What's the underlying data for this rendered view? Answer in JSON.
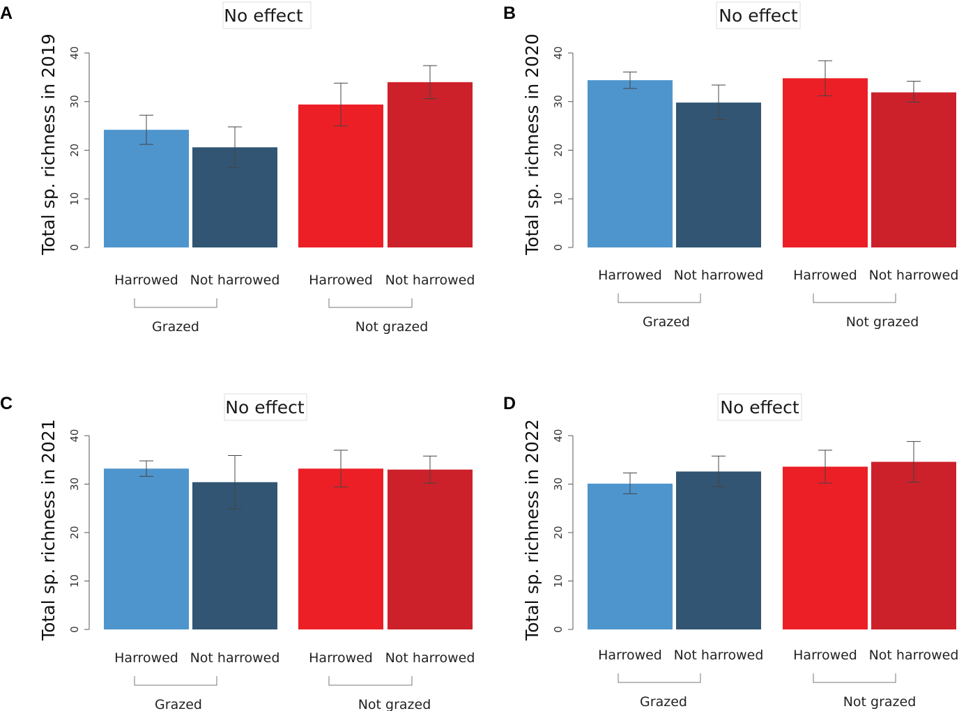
{
  "colors": {
    "grazed_harrowed": "#4f95cd",
    "grazed_not_harrowed": "#315572",
    "notgrazed_harrowed": "#ec1f26",
    "notgrazed_not_harrowed": "#cc212b",
    "axis": "#555555",
    "error_bar": "#444444",
    "status_border": "#dddddd"
  },
  "chart_data": [
    {
      "panel": "A",
      "type": "bar",
      "title": "No effect",
      "ylabel": "Total sp. richness in 2019",
      "ylim": [
        0,
        40
      ],
      "yticks": [
        "0",
        "10",
        "20",
        "30",
        "40"
      ],
      "categories": [
        "Harrowed",
        "Not harrowed",
        "Harrowed",
        "Not harrowed"
      ],
      "groups": [
        "Grazed",
        "Not grazed"
      ],
      "values": [
        24.2,
        20.6,
        29.4,
        34.0
      ],
      "error_low": [
        21.2,
        16.4,
        25.0,
        30.6
      ],
      "error_high": [
        27.2,
        24.8,
        33.8,
        37.4
      ]
    },
    {
      "panel": "B",
      "type": "bar",
      "title": "No effect",
      "ylabel": "Total sp. richness in 2020",
      "ylim": [
        0,
        40
      ],
      "yticks": [
        "0",
        "10",
        "20",
        "30",
        "40"
      ],
      "categories": [
        "Harrowed",
        "Not harrowed",
        "Harrowed",
        "Not harrowed"
      ],
      "groups": [
        "Grazed",
        "Not grazed"
      ],
      "values": [
        34.4,
        29.8,
        34.8,
        31.9
      ],
      "error_low": [
        32.7,
        26.3,
        31.2,
        29.9
      ],
      "error_high": [
        36.1,
        33.4,
        38.4,
        34.2
      ]
    },
    {
      "panel": "C",
      "type": "bar",
      "title": "No effect",
      "ylabel": "Total sp. richness in 2021",
      "ylim": [
        0,
        40
      ],
      "yticks": [
        "0",
        "10",
        "20",
        "30",
        "40"
      ],
      "categories": [
        "Harrowed",
        "Not harrowed",
        "Harrowed",
        "Not harrowed"
      ],
      "groups": [
        "Grazed",
        "Not grazed"
      ],
      "values": [
        33.2,
        30.4,
        33.2,
        33.0
      ],
      "error_low": [
        31.6,
        24.9,
        29.4,
        30.2
      ],
      "error_high": [
        34.8,
        35.9,
        37.0,
        35.8
      ]
    },
    {
      "panel": "D",
      "type": "bar",
      "title": "No effect",
      "ylabel": "Total sp. richness in 2022",
      "ylim": [
        0,
        40
      ],
      "yticks": [
        "0",
        "10",
        "20",
        "30",
        "40"
      ],
      "categories": [
        "Harrowed",
        "Not harrowed",
        "Harrowed",
        "Not harrowed"
      ],
      "groups": [
        "Grazed",
        "Not grazed"
      ],
      "values": [
        30.1,
        32.6,
        33.6,
        34.6
      ],
      "error_low": [
        28.0,
        29.5,
        30.2,
        30.4
      ],
      "error_high": [
        32.3,
        35.8,
        37.0,
        38.8
      ]
    }
  ]
}
